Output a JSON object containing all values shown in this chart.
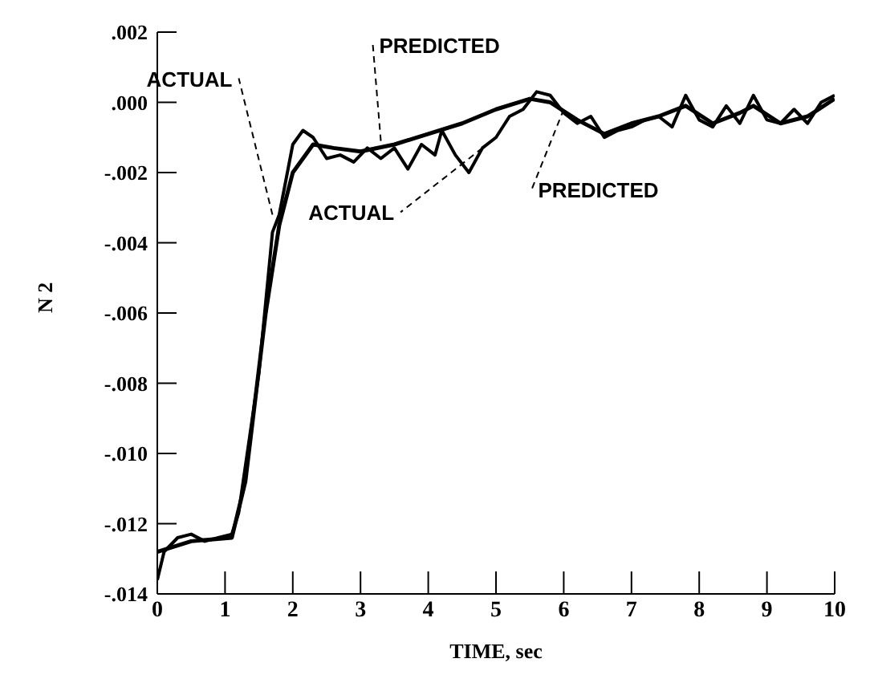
{
  "chart_data": {
    "type": "line",
    "xlabel": "TIME, sec",
    "ylabel": "N 2",
    "xlim": [
      0,
      10
    ],
    "xticks": [
      0,
      1,
      2,
      3,
      4,
      5,
      6,
      7,
      8,
      9,
      10
    ],
    "ylim": [
      -0.014,
      0.002
    ],
    "yticks": [
      {
        "value": 0.002,
        "label": ".002"
      },
      {
        "value": 0,
        "label": ".000"
      },
      {
        "value": -0.002,
        "label": "-.002"
      },
      {
        "value": -0.004,
        "label": "-.004"
      },
      {
        "value": -0.006,
        "label": "-.006"
      },
      {
        "value": -0.008,
        "label": "-.008"
      },
      {
        "value": -0.01,
        "label": "-.010"
      },
      {
        "value": -0.012,
        "label": "-.012"
      },
      {
        "value": -0.014,
        "label": "-.014"
      }
    ],
    "series": [
      {
        "color": "#000000",
        "x": [
          0,
          0.1,
          0.3,
          0.5,
          0.7,
          0.9,
          1.1,
          1.2,
          1.5,
          1.7,
          1.8,
          2,
          2.15,
          2.3,
          2.5,
          2.7,
          2.9,
          3.1,
          3.3,
          3.5,
          3.7,
          3.9,
          4.1,
          4.2,
          4.4,
          4.6,
          4.8,
          5,
          5.2,
          5.4,
          5.6,
          5.8,
          6,
          6.2,
          6.4,
          6.6,
          6.8,
          7,
          7.2,
          7.4,
          7.6,
          7.8,
          8,
          8.2,
          8.4,
          8.6,
          8.8,
          9,
          9.2,
          9.4,
          9.6,
          9.8,
          10
        ],
        "values": [
          -0.0136,
          -0.0128,
          -0.0124,
          -0.0123,
          -0.0125,
          -0.0124,
          -0.0123,
          -0.0117,
          -0.0077,
          -0.0037,
          -0.0032,
          -0.0012,
          -0.0008,
          -0.001,
          -0.0016,
          -0.0015,
          -0.0017,
          -0.0013,
          -0.0016,
          -0.0013,
          -0.0019,
          -0.0012,
          -0.0015,
          -0.0008,
          -0.0015,
          -0.002,
          -0.0013,
          -0.001,
          -0.0004,
          -0.0002,
          0.0003,
          0.0002,
          -0.0003,
          -0.0006,
          -0.0004,
          -0.001,
          -0.0008,
          -0.0007,
          -0.0005,
          -0.0004,
          -0.0007,
          0.0002,
          -0.0005,
          -0.0007,
          -0.0001,
          -0.0006,
          0.0002,
          -0.0005,
          -0.0006,
          -0.0002,
          -0.0006,
          0,
          0.0002
        ]
      },
      {
        "color": "#000000",
        "x": [
          0,
          0.5,
          1.1,
          1.3,
          1.6,
          1.8,
          2,
          2.3,
          2.6,
          3,
          3.5,
          4,
          4.5,
          5,
          5.5,
          5.8,
          6.2,
          6.6,
          7,
          7.4,
          7.8,
          8.2,
          8.6,
          8.8,
          9.2,
          9.6,
          10
        ],
        "values": [
          -0.0128,
          -0.0125,
          -0.0124,
          -0.0108,
          -0.006,
          -0.0035,
          -0.002,
          -0.0012,
          -0.0013,
          -0.0014,
          -0.0012,
          -0.0009,
          -0.0006,
          -0.0002,
          0.0001,
          0,
          -0.0005,
          -0.0009,
          -0.0006,
          -0.0004,
          -0.0001,
          -0.0006,
          -0.0003,
          -0.0001,
          -0.0006,
          -0.0004,
          0.0001
        ]
      }
    ],
    "annotations": [
      {
        "text": "ACTUAL",
        "x": 1.7,
        "y": -0.0032
      },
      {
        "text": "PREDICTED",
        "x": 3.3,
        "y": -0.0011
      },
      {
        "text": "ACTUAL",
        "x": 4.8,
        "y": -0.0013
      },
      {
        "text": "PREDICTED",
        "x": 6,
        "y": -0.0002
      }
    ]
  }
}
